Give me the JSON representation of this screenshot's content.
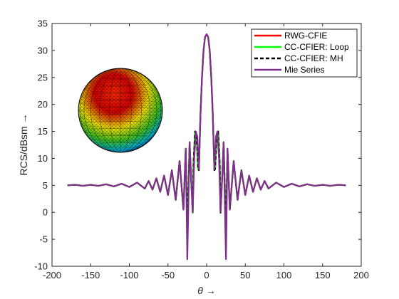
{
  "chart_data": {
    "type": "line",
    "title": "",
    "xlabel": "θ →",
    "ylabel": "RCS/dBsm →",
    "xlim": [
      -200,
      200
    ],
    "ylim": [
      -10,
      35
    ],
    "xticks": [
      -200,
      -150,
      -100,
      -50,
      0,
      50,
      100,
      150,
      200
    ],
    "yticks": [
      -10,
      -5,
      0,
      5,
      10,
      15,
      20,
      25,
      30,
      35
    ],
    "grid": false,
    "legend_position": "top-right",
    "series": [
      {
        "name": "RWG-CFIE",
        "color": "#ff0000",
        "line_style": "solid",
        "x": [
          -180,
          -170,
          -160,
          -150,
          -140,
          -130,
          -120,
          -110,
          -100,
          -90,
          -80,
          -75,
          -70,
          -65,
          -60,
          -55,
          -50,
          -45,
          -40,
          -35,
          -30,
          -27,
          -25,
          -22,
          -20,
          -18,
          -17,
          -15,
          -13,
          -11,
          -10,
          -8,
          -6,
          -4,
          -2,
          0,
          2,
          4,
          6,
          8,
          10,
          11,
          13,
          15,
          17,
          18,
          20,
          22,
          25,
          27,
          30,
          35,
          40,
          45,
          50,
          55,
          60,
          65,
          70,
          75,
          80,
          90,
          100,
          110,
          120,
          130,
          140,
          150,
          160,
          170,
          180
        ],
        "y": [
          5.0,
          5.1,
          4.9,
          5.1,
          4.9,
          5.2,
          4.8,
          5.3,
          4.7,
          5.5,
          4.4,
          5.8,
          4.2,
          6.3,
          3.8,
          6.8,
          3.2,
          7.8,
          2.3,
          9.5,
          0.5,
          11.8,
          -3.0,
          13.0,
          6.0,
          -0.1,
          9.0,
          15.0,
          14.0,
          8.0,
          7.8,
          18.0,
          25.0,
          30.0,
          32.5,
          33.0,
          32.5,
          30.0,
          25.0,
          18.0,
          7.8,
          8.0,
          14.0,
          15.0,
          9.0,
          -0.1,
          6.0,
          13.0,
          -3.0,
          11.8,
          0.5,
          9.5,
          2.3,
          7.8,
          3.2,
          6.8,
          3.8,
          6.3,
          4.2,
          5.8,
          4.4,
          5.5,
          4.7,
          5.3,
          4.8,
          5.2,
          4.9,
          5.1,
          4.9,
          5.1,
          5.0
        ]
      },
      {
        "name": "CC-CFIER: Loop",
        "color": "#00ff00",
        "line_style": "solid",
        "x": [
          -180,
          -170,
          -160,
          -150,
          -140,
          -130,
          -120,
          -110,
          -100,
          -90,
          -80,
          -75,
          -70,
          -65,
          -60,
          -55,
          -50,
          -45,
          -40,
          -35,
          -30,
          -27,
          -25,
          -22,
          -20,
          -18,
          -17,
          -15,
          -13,
          -11,
          -10,
          -8,
          -6,
          -4,
          -2,
          0,
          2,
          4,
          6,
          8,
          10,
          11,
          13,
          15,
          17,
          18,
          20,
          22,
          25,
          27,
          30,
          35,
          40,
          45,
          50,
          55,
          60,
          65,
          70,
          75,
          80,
          90,
          100,
          110,
          120,
          130,
          140,
          150,
          160,
          170,
          180
        ],
        "y": [
          5.0,
          5.1,
          4.9,
          5.1,
          4.9,
          5.2,
          4.8,
          5.3,
          4.7,
          5.5,
          4.4,
          5.8,
          4.2,
          6.3,
          3.8,
          6.8,
          3.2,
          7.8,
          2.3,
          9.5,
          0.5,
          11.8,
          -3.0,
          13.0,
          6.0,
          -0.1,
          9.0,
          15.0,
          14.0,
          8.0,
          7.8,
          18.0,
          25.0,
          30.0,
          32.5,
          33.0,
          32.5,
          30.0,
          25.0,
          18.0,
          7.8,
          8.0,
          14.0,
          15.0,
          9.0,
          -0.1,
          6.0,
          13.0,
          -3.0,
          11.8,
          0.5,
          9.5,
          2.3,
          7.8,
          3.2,
          6.8,
          3.8,
          6.3,
          4.2,
          5.8,
          4.4,
          5.5,
          4.7,
          5.3,
          4.8,
          5.2,
          4.9,
          5.1,
          4.9,
          5.1,
          5.0
        ]
      },
      {
        "name": "CC-CFIER: MH",
        "color": "#000000",
        "line_style": "dashed",
        "x": [
          -180,
          -170,
          -160,
          -150,
          -140,
          -130,
          -120,
          -110,
          -100,
          -90,
          -80,
          -75,
          -70,
          -65,
          -60,
          -55,
          -50,
          -45,
          -40,
          -35,
          -30,
          -27,
          -25,
          -22,
          -20,
          -18,
          -17,
          -15,
          -13,
          -11,
          -10,
          -8,
          -6,
          -4,
          -2,
          0,
          2,
          4,
          6,
          8,
          10,
          11,
          13,
          15,
          17,
          18,
          20,
          22,
          25,
          27,
          30,
          35,
          40,
          45,
          50,
          55,
          60,
          65,
          70,
          75,
          80,
          90,
          100,
          110,
          120,
          130,
          140,
          150,
          160,
          170,
          180
        ],
        "y": [
          5.0,
          5.1,
          4.9,
          5.1,
          4.9,
          5.2,
          4.8,
          5.3,
          4.7,
          5.5,
          4.4,
          5.8,
          4.2,
          6.3,
          3.8,
          6.8,
          3.2,
          7.8,
          2.3,
          9.5,
          0.5,
          11.8,
          -3.0,
          13.0,
          6.0,
          -0.1,
          9.0,
          15.0,
          14.0,
          8.0,
          7.8,
          18.0,
          25.0,
          30.0,
          32.5,
          33.0,
          32.5,
          30.0,
          25.0,
          18.0,
          7.8,
          8.0,
          14.0,
          15.0,
          9.0,
          -0.1,
          6.0,
          13.0,
          -3.0,
          11.8,
          0.5,
          9.5,
          2.3,
          7.8,
          3.2,
          6.8,
          3.8,
          6.3,
          4.2,
          5.8,
          4.4,
          5.5,
          4.7,
          5.3,
          4.8,
          5.2,
          4.9,
          5.1,
          4.9,
          5.1,
          5.0
        ]
      },
      {
        "name": "Mie Series",
        "color": "#7e2f8e",
        "line_style": "solid",
        "x": [
          -180,
          -170,
          -160,
          -150,
          -140,
          -130,
          -120,
          -110,
          -100,
          -90,
          -80,
          -75,
          -70,
          -65,
          -60,
          -55,
          -50,
          -45,
          -40,
          -35,
          -30,
          -27,
          -25,
          -22,
          -20,
          -18,
          -16,
          -14,
          -12,
          -10,
          -8,
          -6,
          -4,
          -2,
          0,
          2,
          4,
          6,
          8,
          10,
          12,
          14,
          16,
          18,
          20,
          22,
          25,
          27,
          30,
          35,
          40,
          45,
          50,
          55,
          60,
          65,
          70,
          75,
          80,
          90,
          100,
          110,
          120,
          130,
          140,
          150,
          160,
          170,
          180
        ],
        "y": [
          5.0,
          5.1,
          4.9,
          5.1,
          4.9,
          5.2,
          4.8,
          5.3,
          4.7,
          5.5,
          4.4,
          5.8,
          4.2,
          6.3,
          3.8,
          6.8,
          3.2,
          7.8,
          2.3,
          9.5,
          0.5,
          11.8,
          -8.7,
          13.0,
          6.0,
          0.0,
          10.0,
          15.0,
          14.0,
          8.0,
          18.0,
          25.0,
          30.0,
          32.5,
          33.0,
          32.5,
          30.0,
          25.0,
          18.0,
          8.0,
          14.0,
          15.0,
          10.0,
          0.0,
          6.0,
          13.0,
          -8.7,
          11.8,
          0.5,
          9.5,
          2.3,
          7.8,
          3.2,
          6.8,
          3.8,
          6.3,
          4.2,
          5.8,
          4.4,
          5.5,
          4.7,
          5.3,
          4.8,
          5.2,
          4.9,
          5.1,
          4.9,
          5.1,
          5.0
        ]
      }
    ]
  }
}
